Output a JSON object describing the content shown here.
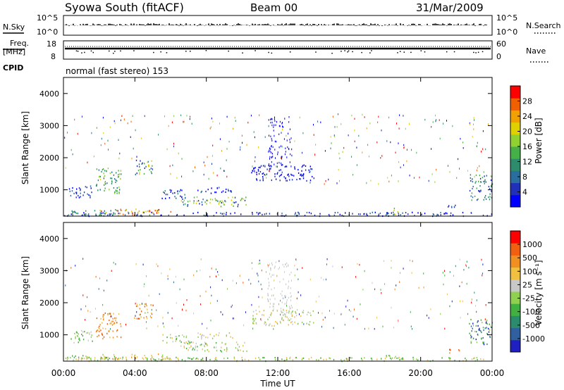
{
  "header": {
    "title": "Syowa South (fitACF)",
    "beam": "Beam 00",
    "date": "31/Mar/2009"
  },
  "top_panels": {
    "nsky_label": "N.Sky",
    "nsky_ticks": [
      "10^5",
      "10^0"
    ],
    "nsearch_label": "N.Search",
    "nsearch_ticks": [
      "10^5",
      "10^0"
    ],
    "freq_label": "Freq.",
    "freq_unit": "[MHz]",
    "freq_ticks": [
      "18",
      "8"
    ],
    "nave_label": "Nave",
    "nave_ticks": [
      "60",
      "0"
    ],
    "cpid_label": "CPID",
    "cpid_text": "normal (fast stereo) 153"
  },
  "chart_data": [
    {
      "type": "heatmap",
      "name": "power-panel",
      "ylabel": "Slant Range [km]",
      "yticks": [
        "4000",
        "3000",
        "2000",
        "1000"
      ],
      "ylim": [
        180,
        4500
      ],
      "xlim": [
        0,
        24
      ],
      "colorbar": {
        "label": "Power [dB]",
        "ticks": [
          "28",
          "24",
          "20",
          "16",
          "12",
          "8",
          "4"
        ],
        "colors": [
          "#0000ff",
          "#2030b8",
          "#2a6ea0",
          "#2e8c6c",
          "#45b048",
          "#90d030",
          "#e0d000",
          "#f0a000",
          "#f06000",
          "#ff0000"
        ]
      },
      "regions": [
        {
          "t0": 0.3,
          "t1": 1.6,
          "r0": 750,
          "r1": 1150,
          "c": [
            0,
            1,
            2
          ]
        },
        {
          "t0": 1.8,
          "t1": 3.2,
          "r0": 900,
          "r1": 1700,
          "c": [
            2,
            3,
            4,
            5
          ]
        },
        {
          "t0": 4.0,
          "t1": 5.0,
          "r0": 1500,
          "r1": 2000,
          "c": [
            1,
            2,
            4,
            6
          ]
        },
        {
          "t0": 5.5,
          "t1": 7.0,
          "r0": 750,
          "r1": 1050,
          "c": [
            0,
            1,
            2,
            3
          ]
        },
        {
          "t0": 6.5,
          "t1": 10.3,
          "r0": 500,
          "r1": 800,
          "c": [
            1,
            2,
            4,
            5,
            6
          ]
        },
        {
          "t0": 7.5,
          "t1": 9.5,
          "r0": 900,
          "r1": 1100,
          "c": [
            0,
            1,
            2
          ]
        },
        {
          "t0": 10.5,
          "t1": 14.0,
          "r0": 1300,
          "r1": 1800,
          "c": [
            0,
            1
          ]
        },
        {
          "t0": 2.0,
          "t1": 6.0,
          "r0": 230,
          "r1": 420,
          "c": [
            4,
            6,
            7,
            8,
            9
          ]
        },
        {
          "t0": 0.1,
          "t1": 3.0,
          "r0": 220,
          "r1": 380,
          "c": [
            2,
            3,
            4
          ]
        },
        {
          "t0": 18.0,
          "t1": 18.7,
          "r0": 250,
          "r1": 450,
          "c": [
            3,
            4,
            6
          ]
        },
        {
          "t0": 22.7,
          "t1": 24.0,
          "r0": 700,
          "r1": 1500,
          "c": [
            1,
            2,
            3,
            4
          ]
        },
        {
          "t0": 21.5,
          "t1": 22.2,
          "r0": 450,
          "r1": 600,
          "c": [
            1,
            2
          ]
        },
        {
          "t0": 0.0,
          "t1": 24.0,
          "r0": 200,
          "r1": 320,
          "c": [
            0,
            1,
            2
          ]
        }
      ]
    },
    {
      "type": "heatmap",
      "name": "velocity-panel",
      "ylabel": "Slant Range [km]",
      "yticks": [
        "4000",
        "3000",
        "2000",
        "1000"
      ],
      "ylim": [
        180,
        4500
      ],
      "xlim": [
        0,
        24
      ],
      "xlabel": "Time UT",
      "xticks": [
        "00:00",
        "04:00",
        "08:00",
        "12:00",
        "16:00",
        "20:00",
        "00:00"
      ],
      "colorbar": {
        "label": "Velocity [m s⁻¹]",
        "ticks": [
          "1000",
          "500",
          "100",
          "25",
          "-25",
          "-100",
          "-500",
          "-1000"
        ],
        "colors": [
          "#2020c0",
          "#3060a0",
          "#2a8c6c",
          "#40b040",
          "#90d050",
          "#c8c8c8",
          "#f0c040",
          "#f09020",
          "#f06010",
          "#ff0000"
        ]
      },
      "regions": [
        {
          "t0": 0.3,
          "t1": 1.6,
          "r0": 750,
          "r1": 1150,
          "c": [
            3,
            4,
            5
          ]
        },
        {
          "t0": 1.8,
          "t1": 3.2,
          "r0": 900,
          "r1": 1700,
          "c": [
            6,
            7,
            8
          ]
        },
        {
          "t0": 4.0,
          "t1": 5.0,
          "r0": 1500,
          "r1": 2000,
          "c": [
            6,
            7,
            8,
            4
          ]
        },
        {
          "t0": 5.5,
          "t1": 7.0,
          "r0": 750,
          "r1": 1050,
          "c": [
            3,
            4,
            5,
            6
          ]
        },
        {
          "t0": 6.5,
          "t1": 10.3,
          "r0": 500,
          "r1": 800,
          "c": [
            5,
            6,
            4,
            3
          ]
        },
        {
          "t0": 7.5,
          "t1": 9.5,
          "r0": 900,
          "r1": 1100,
          "c": [
            5,
            6,
            4
          ]
        },
        {
          "t0": 10.5,
          "t1": 14.0,
          "r0": 1300,
          "r1": 1800,
          "c": [
            5,
            6,
            4
          ]
        },
        {
          "t0": 2.0,
          "t1": 6.0,
          "r0": 230,
          "r1": 420,
          "c": [
            6,
            7,
            4
          ]
        },
        {
          "t0": 0.1,
          "t1": 3.0,
          "r0": 220,
          "r1": 380,
          "c": [
            3,
            4,
            6
          ]
        },
        {
          "t0": 18.0,
          "t1": 18.7,
          "r0": 250,
          "r1": 450,
          "c": [
            3,
            4
          ]
        },
        {
          "t0": 22.7,
          "t1": 24.0,
          "r0": 700,
          "r1": 1500,
          "c": [
            1,
            2,
            3,
            4,
            0
          ]
        },
        {
          "t0": 21.5,
          "t1": 22.2,
          "r0": 450,
          "r1": 600,
          "c": [
            7,
            8
          ]
        },
        {
          "t0": 0.0,
          "t1": 24.0,
          "r0": 200,
          "r1": 320,
          "c": [
            3,
            4,
            6
          ]
        }
      ]
    }
  ]
}
